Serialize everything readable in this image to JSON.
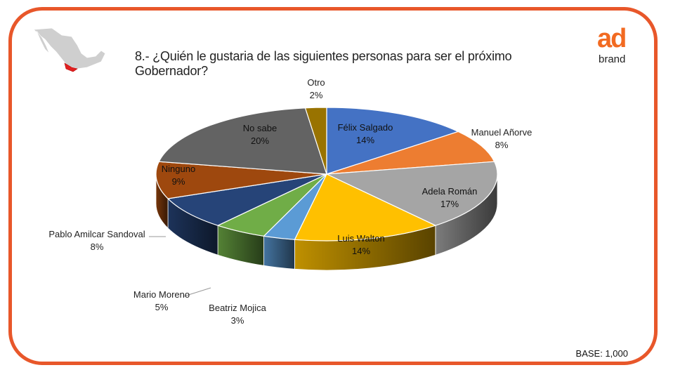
{
  "header": {
    "title": "8.- ¿Quién le gustaria de las siguientes personas para ser el próximo Gobernador?",
    "logo_top": "ad",
    "logo_bottom": "brand"
  },
  "footer": {
    "base": "BASE: 1,000"
  },
  "colors": {
    "frame": "#e8572a",
    "logo": "#f26a21",
    "map_highlight": "#e02020"
  },
  "chart_data": {
    "type": "pie",
    "style": "3d",
    "title": "8.- ¿Quién le gustaria de las siguientes personas para ser el próximo Gobernador?",
    "slices": [
      {
        "label": "Félix Salgado",
        "value": 14,
        "display": "14%",
        "color": "#4472c4"
      },
      {
        "label": "Manuel Añorve",
        "value": 8,
        "display": "8%",
        "color": "#ed7d31"
      },
      {
        "label": "Adela Román",
        "value": 17,
        "display": "17%",
        "color": "#a5a5a5"
      },
      {
        "label": "Luis Walton",
        "value": 14,
        "display": "14%",
        "color": "#ffc000"
      },
      {
        "label": "Beatriz Mojica",
        "value": 3,
        "display": "3%",
        "color": "#5b9bd5"
      },
      {
        "label": "Mario Moreno",
        "value": 5,
        "display": "5%",
        "color": "#70ad47"
      },
      {
        "label": "Pablo Amilcar Sandoval",
        "value": 8,
        "display": "8%",
        "color": "#264478"
      },
      {
        "label": "Ninguno",
        "value": 9,
        "display": "9%",
        "color": "#9e480e"
      },
      {
        "label": "No sabe",
        "value": 20,
        "display": "20%",
        "color": "#636363"
      },
      {
        "label": "Otro",
        "value": 2,
        "display": "2%",
        "color": "#997300"
      }
    ]
  }
}
